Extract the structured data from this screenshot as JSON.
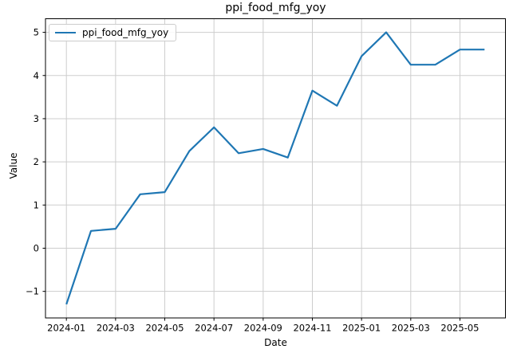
{
  "chart_data": {
    "type": "line",
    "title": "ppi_food_mfg_yoy",
    "xlabel": "Date",
    "ylabel": "Value",
    "grid": true,
    "legend_position": "upper left",
    "series": [
      {
        "name": "ppi_food_mfg_yoy",
        "color": "#1f77b4",
        "x": [
          "2024-01",
          "2024-02",
          "2024-03",
          "2024-04",
          "2024-05",
          "2024-06",
          "2024-07",
          "2024-08",
          "2024-09",
          "2024-10",
          "2024-11",
          "2024-12",
          "2025-01",
          "2025-02",
          "2025-03",
          "2025-04",
          "2025-05",
          "2025-06"
        ],
        "values": [
          -1.3,
          0.4,
          0.45,
          1.25,
          1.3,
          2.25,
          2.8,
          2.2,
          2.3,
          2.1,
          3.65,
          3.3,
          4.45,
          5.0,
          4.25,
          4.25,
          4.6,
          4.6
        ]
      }
    ],
    "x_tick_labels": [
      "2024-01",
      "2024-03",
      "2024-05",
      "2024-07",
      "2024-09",
      "2024-11",
      "2025-01",
      "2025-03",
      "2025-05"
    ],
    "x_tick_indices": [
      0,
      2,
      4,
      6,
      8,
      10,
      12,
      14,
      16
    ],
    "y_tick_values": [
      -1,
      0,
      1,
      2,
      3,
      4,
      5
    ],
    "y_tick_labels": [
      "−1",
      "0",
      "1",
      "2",
      "3",
      "4",
      "5"
    ],
    "ylim": [
      -1.615,
      5.315
    ],
    "x_margin": 0.85,
    "colors": {
      "line": "#1f77b4",
      "grid": "#cdcdcd",
      "spine": "#000000",
      "text": "#000000",
      "background": "#ffffff"
    }
  }
}
